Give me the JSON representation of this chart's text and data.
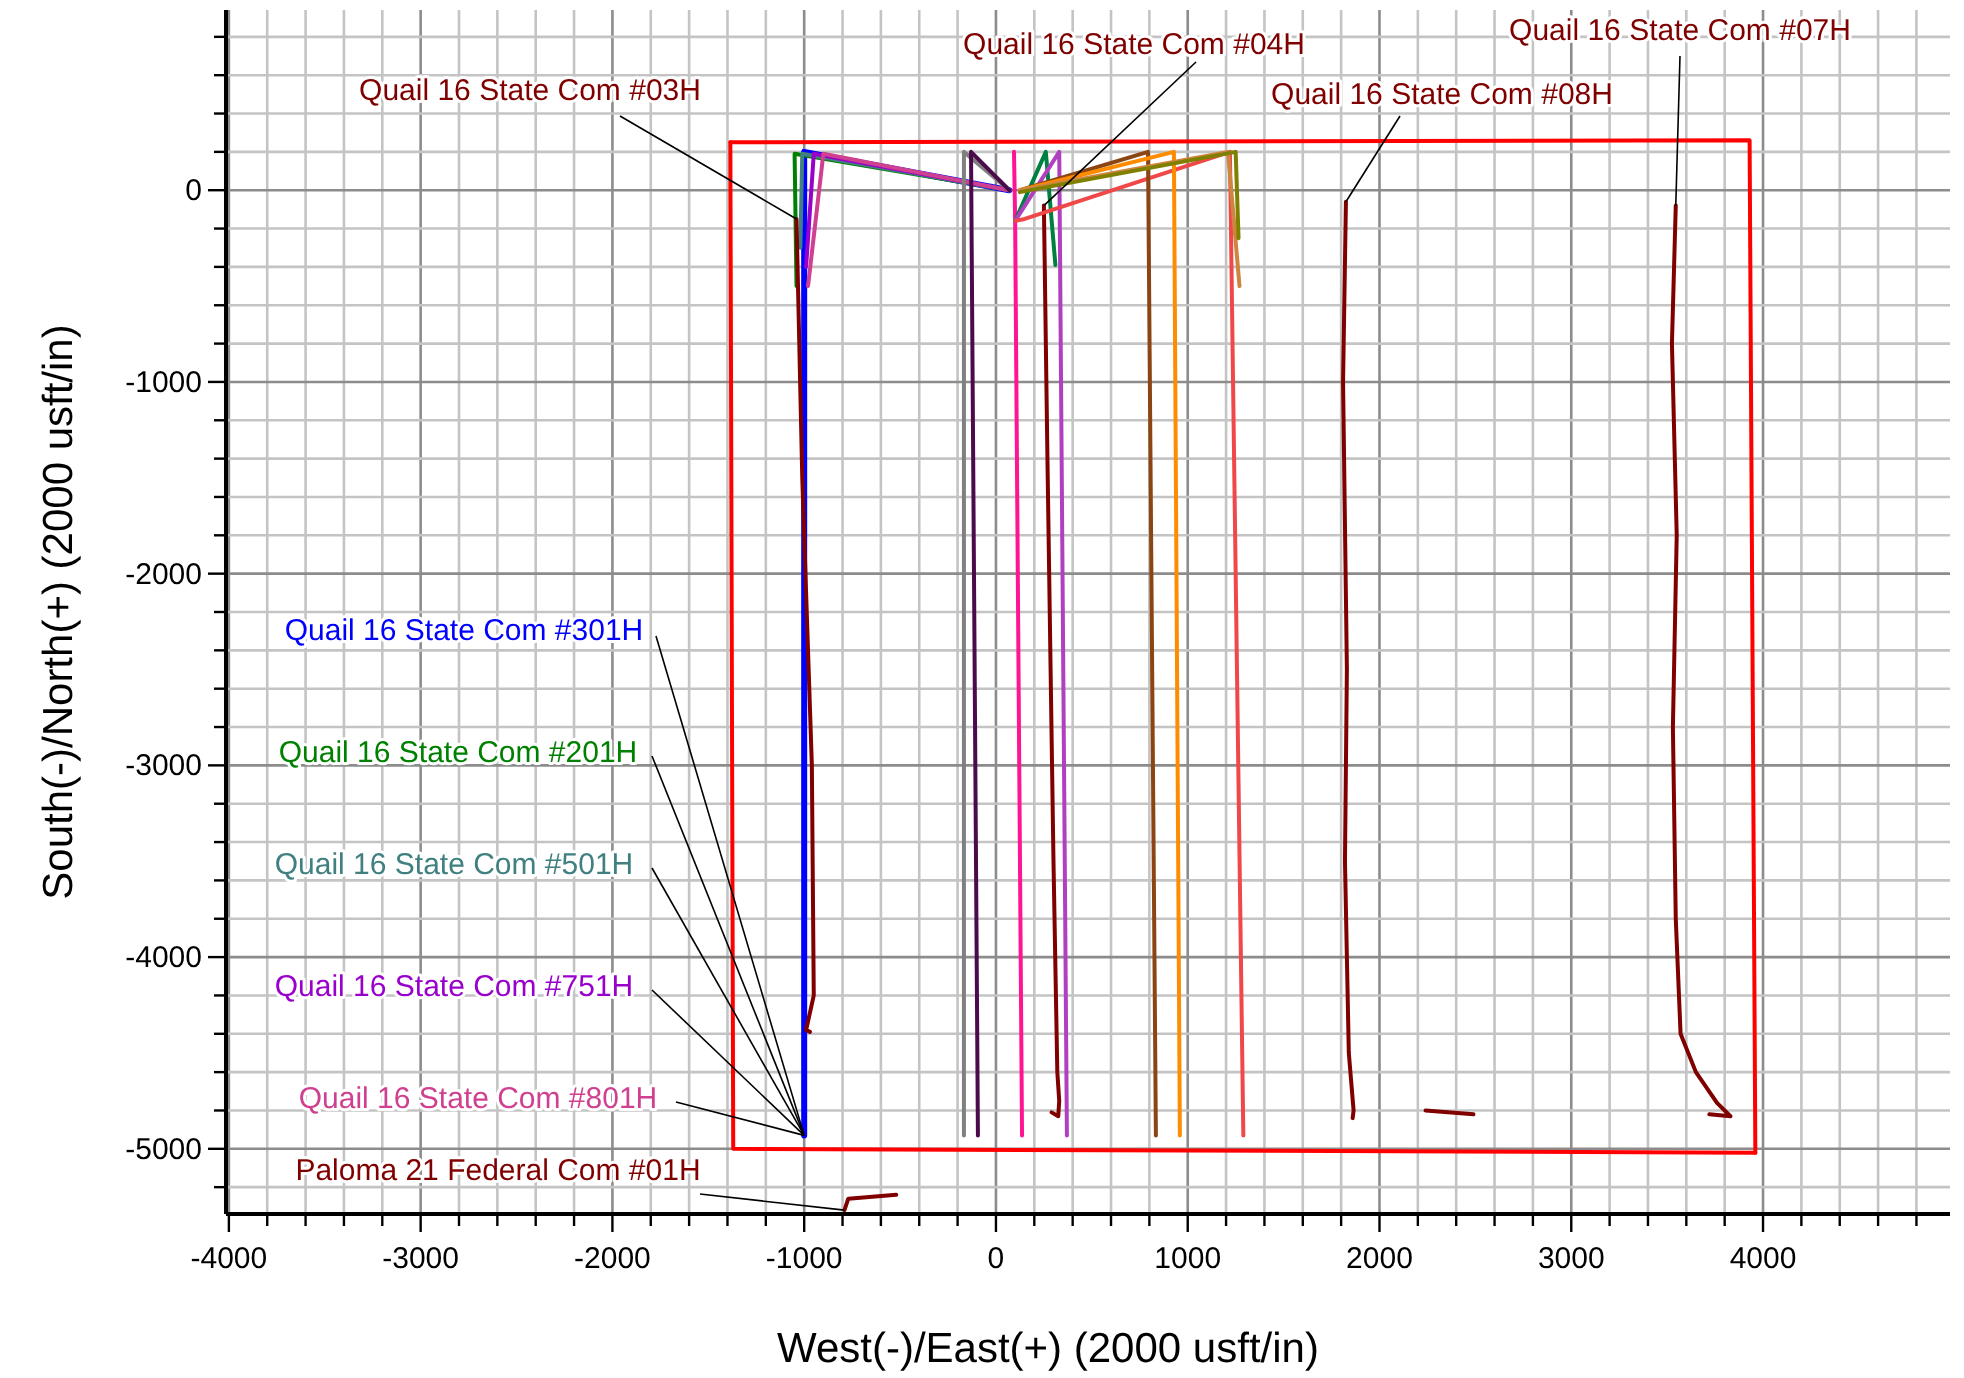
{
  "chart_data": {
    "type": "line",
    "xlabel": "West(-)/East(+) (2000 usft/in)",
    "ylabel": "South(-)/North(+) (2000 usft/in)",
    "xlim": [
      -4015,
      4975
    ],
    "ylim": [
      -5340,
      940
    ],
    "xticks": [
      -4000,
      {
        "value": -3800,
        "label": null
      },
      {
        "value": -3600,
        "label": null
      },
      {
        "value": -3400,
        "label": null
      },
      {
        "value": -3200,
        "label": null
      },
      -3000,
      {
        "value": -2800,
        "label": null
      },
      {
        "value": -2600,
        "label": null
      },
      {
        "value": -2400,
        "label": null
      },
      {
        "value": -2200,
        "label": null
      },
      -2000,
      {
        "value": -1800,
        "label": null
      },
      {
        "value": -1600,
        "label": null
      },
      {
        "value": -1400,
        "label": null
      },
      {
        "value": -1200,
        "label": null
      },
      -1000,
      {
        "value": -800,
        "label": null
      },
      {
        "value": -600,
        "label": null
      },
      {
        "value": -400,
        "label": null
      },
      {
        "value": -200,
        "label": null
      },
      0,
      {
        "value": 200,
        "label": null
      },
      {
        "value": 400,
        "label": null
      },
      {
        "value": 600,
        "label": null
      },
      {
        "value": 800,
        "label": null
      },
      1000,
      {
        "value": 1200,
        "label": null
      },
      {
        "value": 1400,
        "label": null
      },
      {
        "value": 1600,
        "label": null
      },
      {
        "value": 1800,
        "label": null
      },
      2000,
      {
        "value": 2200,
        "label": null
      },
      {
        "value": 2400,
        "label": null
      },
      {
        "value": 2600,
        "label": null
      },
      {
        "value": 2800,
        "label": null
      },
      3000,
      {
        "value": 3200,
        "label": null
      },
      {
        "value": 3400,
        "label": null
      },
      {
        "value": 3600,
        "label": null
      },
      {
        "value": 3800,
        "label": null
      },
      4000,
      {
        "value": 4200,
        "label": null
      },
      {
        "value": 4400,
        "label": null
      },
      {
        "value": 4600,
        "label": null
      },
      {
        "value": 4800,
        "label": null
      }
    ],
    "yticks": [
      {
        "value": -5200,
        "label": null
      },
      -5000,
      {
        "value": -4800,
        "label": null
      },
      {
        "value": -4600,
        "label": null
      },
      {
        "value": -4400,
        "label": null
      },
      {
        "value": -4200,
        "label": null
      },
      -4000,
      {
        "value": -3800,
        "label": null
      },
      {
        "value": -3600,
        "label": null
      },
      {
        "value": -3400,
        "label": null
      },
      {
        "value": -3200,
        "label": null
      },
      -3000,
      {
        "value": -2800,
        "label": null
      },
      {
        "value": -2600,
        "label": null
      },
      {
        "value": -2400,
        "label": null
      },
      {
        "value": -2200,
        "label": null
      },
      -2000,
      {
        "value": -1800,
        "label": null
      },
      {
        "value": -1600,
        "label": null
      },
      {
        "value": -1400,
        "label": null
      },
      {
        "value": -1200,
        "label": null
      },
      -1000,
      {
        "value": -800,
        "label": null
      },
      {
        "value": -600,
        "label": null
      },
      {
        "value": -400,
        "label": null
      },
      {
        "value": -200,
        "label": null
      },
      0,
      {
        "value": 200,
        "label": null
      },
      {
        "value": 400,
        "label": null
      },
      {
        "value": 600,
        "label": null
      },
      {
        "value": 800,
        "label": null
      }
    ],
    "grid": true,
    "marker": "none",
    "line_style": "solid",
    "series": [
      {
        "name": "Quail 16 State Com #301H",
        "color": "#0000ff",
        "x": [
          70,
          -1000,
          -1000
        ],
        "values": [
          0,
          200,
          -4930
        ]
      },
      {
        "name": "Quail 16 State Com #201H",
        "color": "#008000",
        "x": [
          70,
          -1050,
          -1040
        ],
        "values": [
          0,
          190,
          -500
        ]
      },
      {
        "name": "Quail 16 State Com #501H",
        "color": "#408080",
        "x": [
          70,
          -1010,
          -1020
        ],
        "values": [
          0,
          190,
          -300
        ]
      },
      {
        "name": "Quail 16 State Com #751H",
        "color": "#9900cc",
        "x": [
          70,
          -950,
          -990
        ],
        "values": [
          0,
          190,
          -400
        ]
      },
      {
        "name": "Quail 16 State Com #801H",
        "color": "#d04090",
        "x": [
          70,
          -900,
          -980
        ],
        "values": [
          0,
          190,
          -500
        ]
      },
      {
        "name": "Quail 16 State Com #03H",
        "color": "#800000",
        "x": [
          -1040,
          -1010,
          -960,
          -950,
          -990,
          -970
        ],
        "values": [
          -150,
          -1500,
          -3000,
          -4200,
          -4380,
          -4390
        ]
      },
      {
        "name": "Quail 16 State Com #04H",
        "color": "#800000",
        "x": [
          250,
          270,
          300,
          320,
          330,
          325,
          290
        ],
        "values": [
          -80,
          -1500,
          -3500,
          -4600,
          -4750,
          -4830,
          -4810
        ]
      },
      {
        "name": "Quail 16 State Com #08H",
        "color": "#800000",
        "x": [
          1825,
          1810,
          1830,
          1820,
          1840,
          1865,
          1860
        ],
        "values": [
          -60,
          -1000,
          -2500,
          -3500,
          -4500,
          -4800,
          -4840
        ]
      },
      {
        "name": "Quail 16 State Com #07H",
        "color": "#800000",
        "x": [
          3545,
          3525,
          3550,
          3530,
          3545,
          3570,
          3650,
          3760,
          3830,
          3720
        ],
        "values": [
          -80,
          -800,
          -1800,
          -2800,
          -3800,
          -4400,
          -4600,
          -4760,
          -4830,
          -4820
        ]
      },
      {
        "name": "Paloma 21 Federal Com #01H",
        "color": "#800000",
        "x": [
          -790,
          -770,
          -520
        ],
        "values": [
          -5320,
          -5260,
          -5240
        ]
      },
      {
        "color": "#800000",
        "x": [
          2240,
          2490
        ],
        "values": [
          -4800,
          -4820
        ]
      },
      {
        "color": "#808080",
        "x": [
          70,
          -167,
          -167
        ],
        "values": [
          0,
          200,
          -4930
        ]
      },
      {
        "color": "#4b0a4b",
        "x": [
          70,
          -130,
          -94
        ],
        "values": [
          0,
          200,
          -4930
        ]
      },
      {
        "color": "#ff1493",
        "x": [
          94,
          100,
          136
        ],
        "values": [
          200,
          -150,
          -4930
        ]
      },
      {
        "color": "#008040",
        "x": [
          100,
          260,
          310
        ],
        "values": [
          -160,
          200,
          -390
        ]
      },
      {
        "color": "#b040c0",
        "x": [
          100,
          330,
          370
        ],
        "values": [
          -160,
          200,
          -4930
        ]
      },
      {
        "color": "#f04848",
        "x": [
          100,
          150,
          1220,
          1290
        ],
        "values": [
          -160,
          -150,
          200,
          -4930
        ]
      },
      {
        "color": "#8b4513",
        "x": [
          125,
          793,
          834
        ],
        "values": [
          0,
          200,
          -4930
        ]
      },
      {
        "color": "#ff8c00",
        "x": [
          125,
          928,
          959
        ],
        "values": [
          0,
          200,
          -4930
        ]
      },
      {
        "color": "#cd853f",
        "x": [
          125,
          1210,
          1270
        ],
        "values": [
          0,
          200,
          -500
        ]
      },
      {
        "color": "#808000",
        "x": [
          125,
          1250,
          1265
        ],
        "values": [
          -10,
          200,
          -250
        ]
      },
      {
        "color": "#ff0000",
        "x": [
          -1385,
          3930,
          3960
        ],
        "values": [
          250,
          260,
          -5020
        ]
      },
      {
        "color": "#ff0000",
        "x": [
          3960,
          -1370,
          -1385
        ],
        "values": [
          -5020,
          -5000,
          250
        ]
      }
    ]
  }
}
